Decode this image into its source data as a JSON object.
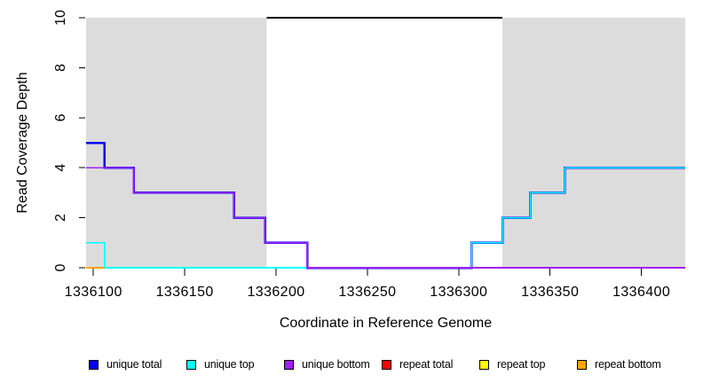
{
  "chart_data": {
    "type": "line",
    "subtype": "step-coverage-plot",
    "title": "",
    "xlabel": "Coordinate in Reference Genome",
    "ylabel": "Read Coverage Depth",
    "xlim": [
      1336096,
      1336424
    ],
    "ylim": [
      0,
      10
    ],
    "grid": false,
    "x_ticks": [
      1336100,
      1336150,
      1336200,
      1336250,
      1336300,
      1336350,
      1336400
    ],
    "x_tick_labels": [
      "1336100",
      "1336150",
      "1336200",
      "1336250",
      "1336300",
      "1336350",
      "1336400"
    ],
    "y_ticks": [
      0,
      2,
      4,
      6,
      8,
      10
    ],
    "y_tick_labels": [
      "0",
      "2",
      "4",
      "6",
      "8",
      "10"
    ],
    "shaded_regions": [
      {
        "name": "unique-region-left",
        "x0": 1336096,
        "x1": 1336195,
        "y0": 0,
        "y1": 10,
        "color": "#DCDCDC"
      },
      {
        "name": "unique-region-right",
        "x0": 1336324,
        "x1": 1336424,
        "y0": 0,
        "y1": 10,
        "color": "#DCDCDC"
      }
    ],
    "top_marker": {
      "name": "repeat-region-segment",
      "x0": 1336195,
      "x1": 1336324,
      "y": 10,
      "color": "#000000"
    },
    "series": [
      {
        "name": "unique total",
        "color": "#0000EE",
        "stroke_width": 2.5,
        "points": [
          [
            1336096,
            5
          ],
          [
            1336106,
            5
          ],
          [
            1336106,
            4
          ],
          [
            1336122,
            4
          ],
          [
            1336122,
            3
          ],
          [
            1336177,
            3
          ],
          [
            1336177,
            2
          ],
          [
            1336194,
            2
          ],
          [
            1336194,
            1
          ],
          [
            1336217,
            1
          ],
          [
            1336217,
            0
          ],
          [
            1336307,
            0
          ],
          [
            1336307,
            1
          ],
          [
            1336324,
            1
          ],
          [
            1336324,
            2
          ],
          [
            1336339,
            2
          ],
          [
            1336339,
            3
          ],
          [
            1336358,
            3
          ],
          [
            1336358,
            4
          ],
          [
            1336424,
            4
          ]
        ]
      },
      {
        "name": "unique top",
        "color": "#00FFFF",
        "stroke_width": 1.6,
        "points": [
          [
            1336096,
            1
          ],
          [
            1336106,
            1
          ],
          [
            1336106,
            0
          ],
          [
            1336307,
            0
          ],
          [
            1336307,
            1
          ],
          [
            1336324,
            1
          ],
          [
            1336324,
            2
          ],
          [
            1336339,
            2
          ],
          [
            1336339,
            3
          ],
          [
            1336358,
            3
          ],
          [
            1336358,
            4
          ],
          [
            1336424,
            4
          ]
        ]
      },
      {
        "name": "unique bottom",
        "color": "#A020F0",
        "stroke_width": 1.6,
        "points": [
          [
            1336096,
            4
          ],
          [
            1336122,
            4
          ],
          [
            1336122,
            3
          ],
          [
            1336177,
            3
          ],
          [
            1336177,
            2
          ],
          [
            1336194,
            2
          ],
          [
            1336194,
            1
          ],
          [
            1336217,
            1
          ],
          [
            1336217,
            0
          ],
          [
            1336424,
            0
          ]
        ]
      },
      {
        "name": "repeat total",
        "color": "#FF0000",
        "stroke_width": 1.6,
        "points": [
          [
            1336096,
            0
          ],
          [
            1336106,
            0
          ]
        ]
      },
      {
        "name": "repeat top",
        "color": "#FFFF00",
        "stroke_width": 1.6,
        "points": [
          [
            1336096,
            0
          ],
          [
            1336106,
            0
          ]
        ]
      },
      {
        "name": "repeat bottom",
        "color": "#FFA500",
        "stroke_width": 2,
        "points": [
          [
            1336096,
            0
          ],
          [
            1336106,
            0
          ]
        ]
      }
    ],
    "legend": {
      "position": "bottom",
      "entries": [
        {
          "label": "unique total",
          "color": "#0000EE"
        },
        {
          "label": "unique top",
          "color": "#00FFFF"
        },
        {
          "label": "unique bottom",
          "color": "#A020F0"
        },
        {
          "label": "repeat total",
          "color": "#FF0000"
        },
        {
          "label": "repeat top",
          "color": "#FFFF00"
        },
        {
          "label": "repeat bottom",
          "color": "#FFA500"
        }
      ]
    }
  }
}
